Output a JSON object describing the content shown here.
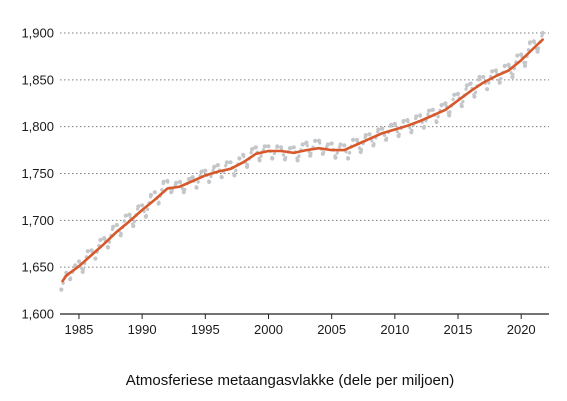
{
  "chart_data": {
    "type": "line",
    "title": "",
    "xlabel": "Atmosferiese metaangasvlakke (dele per miljoen)",
    "ylabel": "",
    "xlim": [
      1983.5,
      2022.2
    ],
    "ylim": [
      1600,
      1900
    ],
    "x_ticks": [
      1985,
      1990,
      1995,
      2000,
      2005,
      2010,
      2015,
      2020
    ],
    "y_ticks": [
      1600,
      1650,
      1700,
      1750,
      1800,
      1850,
      1900
    ],
    "x_tick_labels": [
      "1985",
      "1990",
      "1995",
      "2000",
      "2005",
      "2010",
      "2015",
      "2020"
    ],
    "y_tick_labels": [
      "1,600",
      "1,650",
      "1,700",
      "1,750",
      "1,800",
      "1,850",
      "1,900"
    ],
    "grid": "horizontal-dotted",
    "colors": {
      "trend": "#d6582b",
      "monthly": "#c4c7ca",
      "grid": "#7d7d7d",
      "axis": "#222222"
    },
    "series": [
      {
        "kind": "trend",
        "x": [
          1983.7,
          1984,
          1985,
          1986,
          1987,
          1988,
          1989,
          1990,
          1991,
          1992,
          1993,
          1994,
          1995,
          1996,
          1997,
          1998,
          1999,
          2000,
          2001,
          2002,
          2003,
          2004,
          2005,
          2006,
          2007,
          2008,
          2009,
          2010,
          2011,
          2012,
          2013,
          2014,
          2015,
          2016,
          2017,
          2018,
          2019,
          2020,
          2021,
          2021.7
        ],
        "values": [
          1635,
          1641,
          1651,
          1663,
          1675,
          1688,
          1699,
          1711,
          1722,
          1734,
          1736,
          1742,
          1748,
          1752,
          1755,
          1762,
          1771,
          1774,
          1774,
          1772,
          1775,
          1777,
          1775,
          1775,
          1781,
          1787,
          1793,
          1797,
          1801,
          1806,
          1812,
          1818,
          1828,
          1838,
          1847,
          1854,
          1860,
          1871,
          1884,
          1893
        ]
      },
      {
        "kind": "monthly",
        "x": [
          1983.6,
          1984.0,
          1984.3,
          1984.7,
          1985.0,
          1985.3,
          1985.7,
          1986.0,
          1986.3,
          1986.7,
          1987.0,
          1987.3,
          1987.7,
          1988.0,
          1988.3,
          1988.7,
          1989.0,
          1989.3,
          1989.7,
          1990.0,
          1990.3,
          1990.7,
          1991.0,
          1991.3,
          1991.7,
          1992.0,
          1992.3,
          1992.7,
          1993.0,
          1993.3,
          1993.7,
          1994.0,
          1994.3,
          1994.7,
          1995.0,
          1995.3,
          1995.7,
          1996.0,
          1996.3,
          1996.7,
          1997.0,
          1997.3,
          1997.7,
          1998.0,
          1998.3,
          1998.7,
          1999.0,
          1999.3,
          1999.7,
          2000.0,
          2000.3,
          2000.7,
          2001.0,
          2001.3,
          2001.7,
          2002.0,
          2002.3,
          2002.7,
          2003.0,
          2003.3,
          2003.7,
          2004.0,
          2004.3,
          2004.7,
          2005.0,
          2005.3,
          2005.7,
          2006.0,
          2006.3,
          2006.7,
          2007.0,
          2007.3,
          2007.7,
          2008.0,
          2008.3,
          2008.7,
          2009.0,
          2009.3,
          2009.7,
          2010.0,
          2010.3,
          2010.7,
          2011.0,
          2011.3,
          2011.7,
          2012.0,
          2012.3,
          2012.7,
          2013.0,
          2013.3,
          2013.7,
          2014.0,
          2014.3,
          2014.7,
          2015.0,
          2015.3,
          2015.7,
          2016.0,
          2016.3,
          2016.7,
          2017.0,
          2017.3,
          2017.7,
          2018.0,
          2018.3,
          2018.7,
          2019.0,
          2019.3,
          2019.7,
          2020.0,
          2020.3,
          2020.7,
          2021.0,
          2021.3,
          2021.7
        ],
        "values": [
          1626,
          1644,
          1637,
          1652,
          1656,
          1645,
          1667,
          1668,
          1659,
          1679,
          1681,
          1671,
          1693,
          1695,
          1684,
          1705,
          1706,
          1694,
          1715,
          1716,
          1704,
          1727,
          1730,
          1718,
          1741,
          1742,
          1730,
          1740,
          1741,
          1730,
          1744,
          1746,
          1735,
          1752,
          1753,
          1741,
          1757,
          1759,
          1746,
          1762,
          1762,
          1748,
          1766,
          1770,
          1757,
          1776,
          1778,
          1764,
          1779,
          1779,
          1766,
          1779,
          1778,
          1765,
          1777,
          1778,
          1764,
          1781,
          1783,
          1769,
          1785,
          1785,
          1771,
          1781,
          1782,
          1767,
          1781,
          1780,
          1766,
          1786,
          1786,
          1773,
          1791,
          1792,
          1780,
          1797,
          1798,
          1786,
          1802,
          1803,
          1790,
          1806,
          1807,
          1794,
          1811,
          1812,
          1799,
          1817,
          1818,
          1805,
          1823,
          1825,
          1812,
          1834,
          1835,
          1822,
          1844,
          1846,
          1832,
          1853,
          1853,
          1840,
          1859,
          1860,
          1847,
          1865,
          1866,
          1853,
          1876,
          1877,
          1865,
          1890,
          1891,
          1880,
          1900
        ]
      }
    ]
  }
}
